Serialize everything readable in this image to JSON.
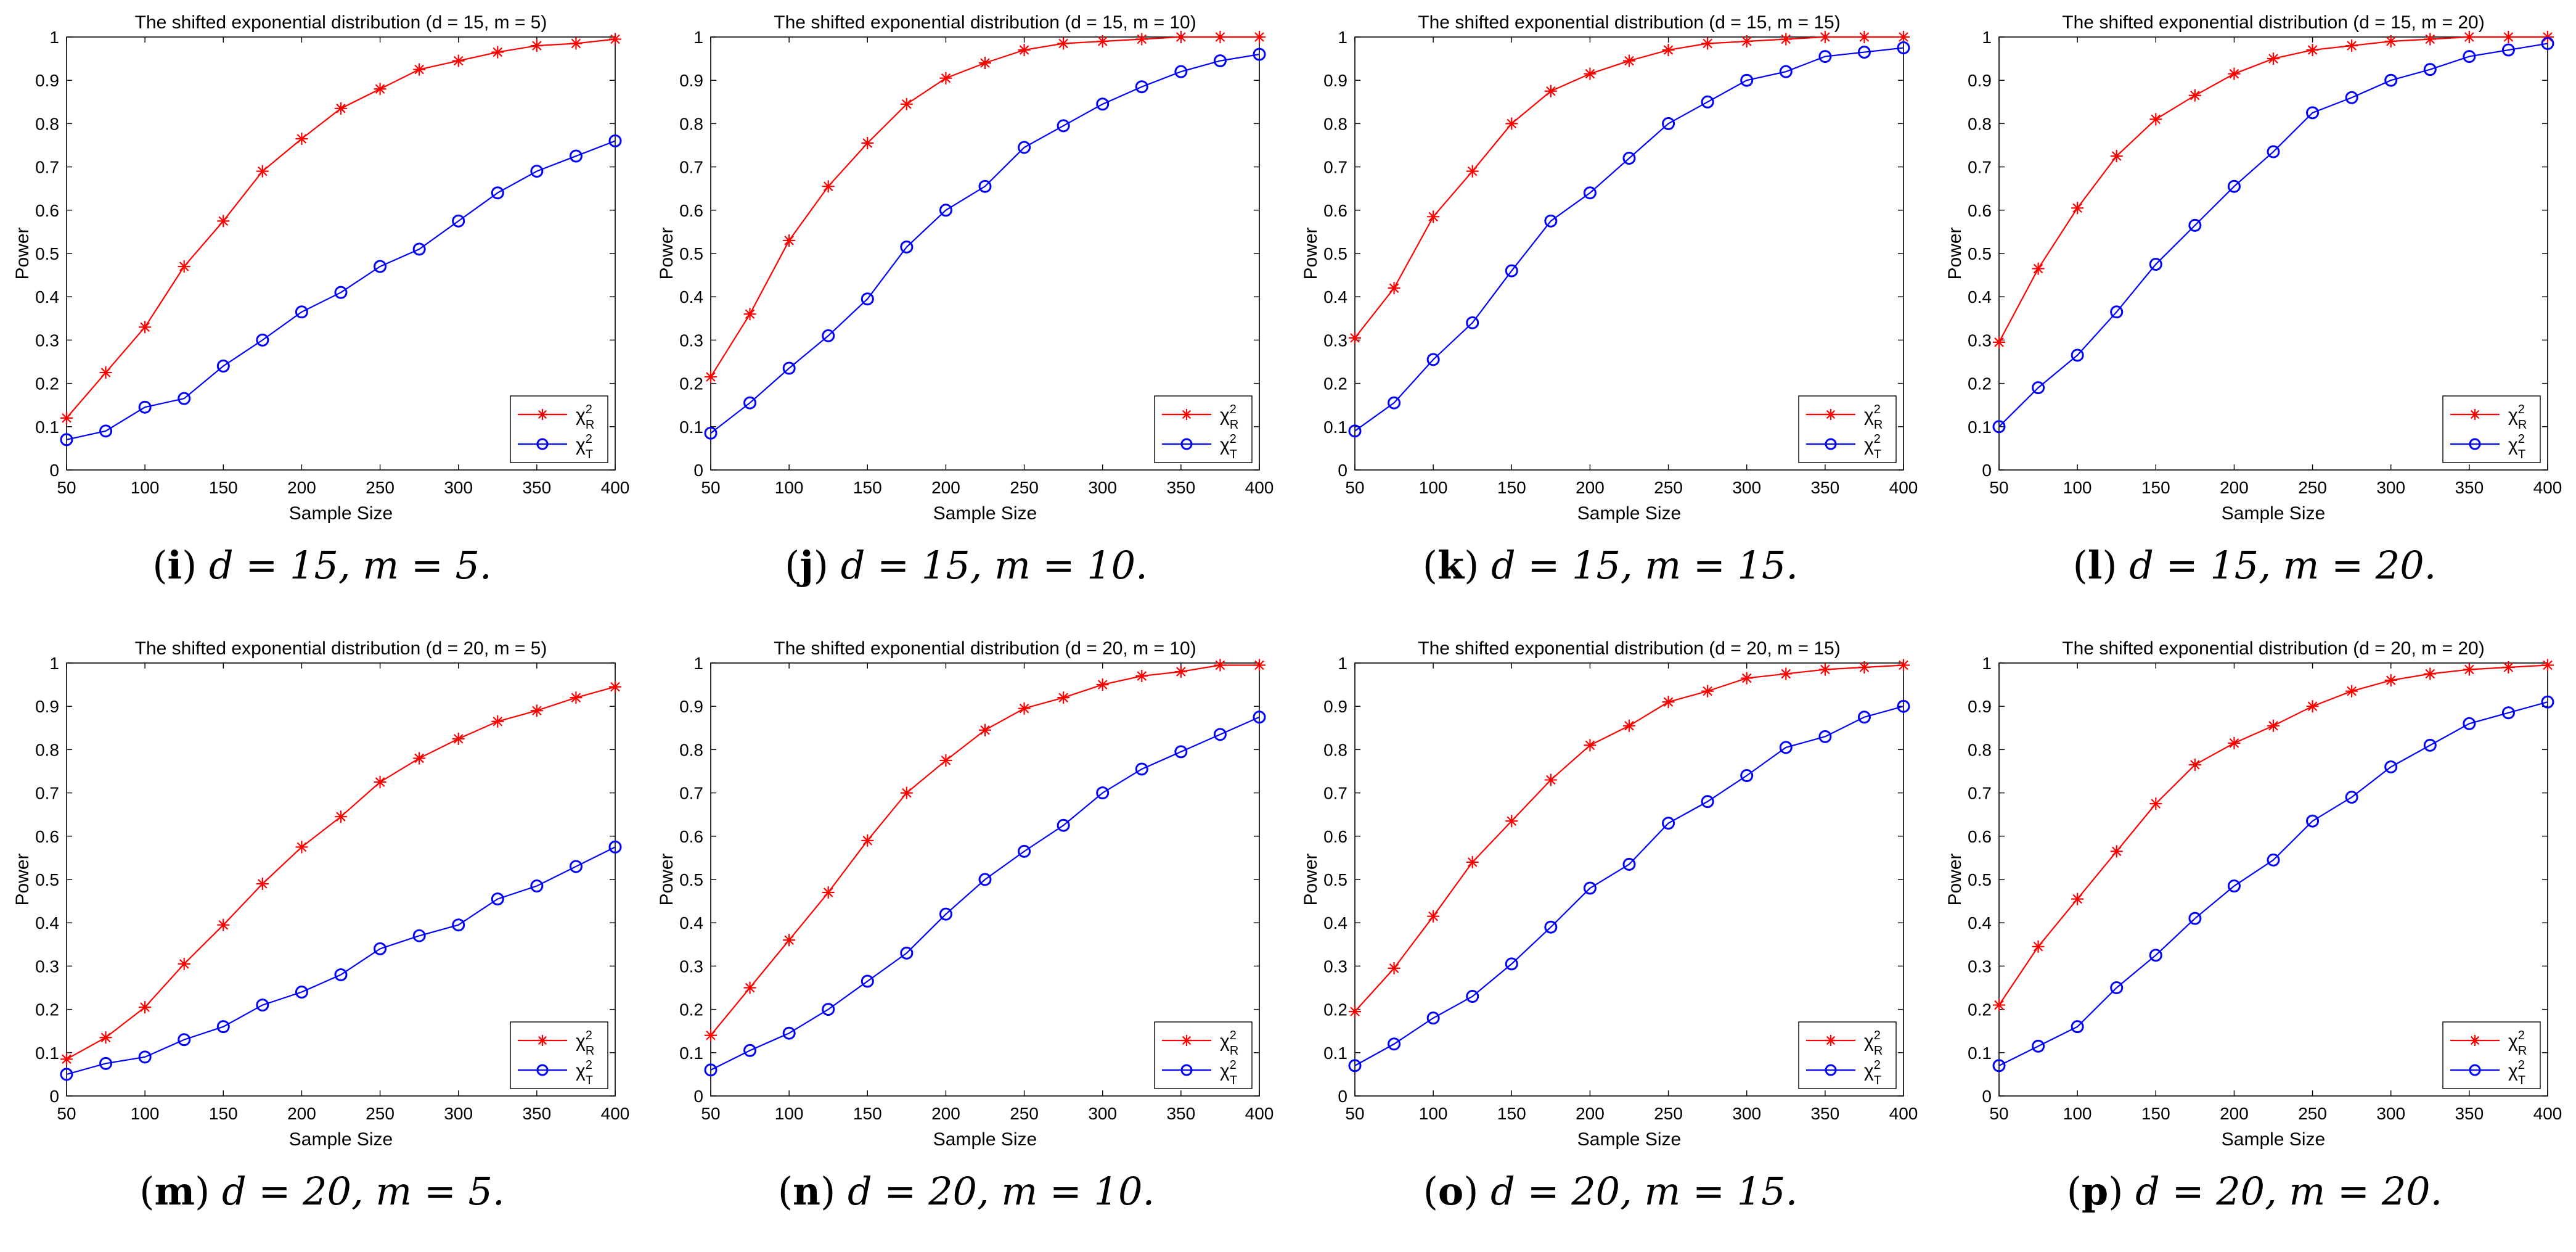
{
  "figure": {
    "x_label": "Sample Size",
    "y_label": "Power",
    "legend": {
      "r_label": "χ²R",
      "r_symbol": "χ",
      "r_sub": "R",
      "t_label": "χ²T",
      "t_symbol": "χ",
      "t_sub": "T",
      "placement": "bottom-right"
    },
    "colors": {
      "r": "#ff0000",
      "t": "#0000ff",
      "axis": "#000000"
    }
  },
  "chart_data": [
    {
      "type": "line",
      "title": "The shifted exponential distribution (d = 15, m = 5)",
      "caption": {
        "letter": "i",
        "text": "d = 15, m = 5."
      },
      "xlabel": "Sample Size",
      "ylabel": "Power",
      "xlim": [
        50,
        400
      ],
      "ylim": [
        0,
        1
      ],
      "x": [
        50,
        75,
        100,
        125,
        150,
        175,
        200,
        225,
        250,
        275,
        300,
        325,
        350,
        375,
        400
      ],
      "series": [
        {
          "name": "χ²R",
          "marker": "asterisk",
          "color": "#ff0000",
          "values": [
            0.12,
            0.225,
            0.33,
            0.47,
            0.575,
            0.69,
            0.765,
            0.835,
            0.88,
            0.925,
            0.945,
            0.965,
            0.98,
            0.985,
            0.995
          ]
        },
        {
          "name": "χ²T",
          "marker": "circle",
          "color": "#0000ff",
          "values": [
            0.07,
            0.09,
            0.145,
            0.165,
            0.24,
            0.3,
            0.365,
            0.41,
            0.47,
            0.51,
            0.575,
            0.64,
            0.69,
            0.725,
            0.76
          ]
        }
      ]
    },
    {
      "type": "line",
      "title": "The shifted exponential distribution (d = 15, m = 10)",
      "caption": {
        "letter": "j",
        "text": "d = 15, m = 10."
      },
      "xlabel": "Sample Size",
      "ylabel": "Power",
      "xlim": [
        50,
        400
      ],
      "ylim": [
        0,
        1
      ],
      "x": [
        50,
        75,
        100,
        125,
        150,
        175,
        200,
        225,
        250,
        275,
        300,
        325,
        350,
        375,
        400
      ],
      "series": [
        {
          "name": "χ²R",
          "marker": "asterisk",
          "color": "#ff0000",
          "values": [
            0.215,
            0.36,
            0.53,
            0.655,
            0.755,
            0.845,
            0.905,
            0.94,
            0.97,
            0.985,
            0.99,
            0.995,
            1.0,
            1.0,
            1.0
          ]
        },
        {
          "name": "χ²T",
          "marker": "circle",
          "color": "#0000ff",
          "values": [
            0.085,
            0.155,
            0.235,
            0.31,
            0.395,
            0.515,
            0.6,
            0.655,
            0.745,
            0.795,
            0.845,
            0.885,
            0.92,
            0.945,
            0.96
          ]
        }
      ]
    },
    {
      "type": "line",
      "title": "The shifted exponential distribution (d = 15, m = 15)",
      "caption": {
        "letter": "k",
        "text": "d = 15, m = 15."
      },
      "xlabel": "Sample Size",
      "ylabel": "Power",
      "xlim": [
        50,
        400
      ],
      "ylim": [
        0,
        1
      ],
      "x": [
        50,
        75,
        100,
        125,
        150,
        175,
        200,
        225,
        250,
        275,
        300,
        325,
        350,
        375,
        400
      ],
      "series": [
        {
          "name": "χ²R",
          "marker": "asterisk",
          "color": "#ff0000",
          "values": [
            0.305,
            0.42,
            0.585,
            0.69,
            0.8,
            0.875,
            0.915,
            0.945,
            0.97,
            0.985,
            0.99,
            0.995,
            1.0,
            1.0,
            1.0
          ]
        },
        {
          "name": "χ²T",
          "marker": "circle",
          "color": "#0000ff",
          "values": [
            0.09,
            0.155,
            0.255,
            0.34,
            0.46,
            0.575,
            0.64,
            0.72,
            0.8,
            0.85,
            0.9,
            0.92,
            0.955,
            0.965,
            0.975
          ]
        }
      ]
    },
    {
      "type": "line",
      "title": "The shifted exponential distribution (d = 15, m = 20)",
      "caption": {
        "letter": "l",
        "text": "d = 15, m = 20."
      },
      "xlabel": "Sample Size",
      "ylabel": "Power",
      "xlim": [
        50,
        400
      ],
      "ylim": [
        0,
        1
      ],
      "x": [
        50,
        75,
        100,
        125,
        150,
        175,
        200,
        225,
        250,
        275,
        300,
        325,
        350,
        375,
        400
      ],
      "series": [
        {
          "name": "χ²R",
          "marker": "asterisk",
          "color": "#ff0000",
          "values": [
            0.295,
            0.465,
            0.605,
            0.725,
            0.81,
            0.865,
            0.915,
            0.95,
            0.97,
            0.98,
            0.99,
            0.995,
            1.0,
            1.0,
            1.0
          ]
        },
        {
          "name": "χ²T",
          "marker": "circle",
          "color": "#0000ff",
          "values": [
            0.1,
            0.19,
            0.265,
            0.365,
            0.475,
            0.565,
            0.655,
            0.735,
            0.825,
            0.86,
            0.9,
            0.925,
            0.955,
            0.97,
            0.985
          ]
        }
      ]
    },
    {
      "type": "line",
      "title": "The shifted exponential distribution (d = 20, m = 5)",
      "caption": {
        "letter": "m",
        "text": "d = 20, m = 5."
      },
      "xlabel": "Sample Size",
      "ylabel": "Power",
      "xlim": [
        50,
        400
      ],
      "ylim": [
        0,
        1
      ],
      "x": [
        50,
        75,
        100,
        125,
        150,
        175,
        200,
        225,
        250,
        275,
        300,
        325,
        350,
        375,
        400
      ],
      "series": [
        {
          "name": "χ²R",
          "marker": "asterisk",
          "color": "#ff0000",
          "values": [
            0.085,
            0.135,
            0.205,
            0.305,
            0.395,
            0.49,
            0.575,
            0.645,
            0.725,
            0.78,
            0.825,
            0.865,
            0.89,
            0.92,
            0.945
          ]
        },
        {
          "name": "χ²T",
          "marker": "circle",
          "color": "#0000ff",
          "values": [
            0.05,
            0.075,
            0.09,
            0.13,
            0.16,
            0.21,
            0.24,
            0.28,
            0.34,
            0.37,
            0.395,
            0.455,
            0.485,
            0.53,
            0.575
          ]
        }
      ]
    },
    {
      "type": "line",
      "title": "The shifted exponential distribution (d = 20, m = 10)",
      "caption": {
        "letter": "n",
        "text": "d = 20, m = 10."
      },
      "xlabel": "Sample Size",
      "ylabel": "Power",
      "xlim": [
        50,
        400
      ],
      "ylim": [
        0,
        1
      ],
      "x": [
        50,
        75,
        100,
        125,
        150,
        175,
        200,
        225,
        250,
        275,
        300,
        325,
        350,
        375,
        400
      ],
      "series": [
        {
          "name": "χ²R",
          "marker": "asterisk",
          "color": "#ff0000",
          "values": [
            0.14,
            0.25,
            0.36,
            0.47,
            0.59,
            0.7,
            0.775,
            0.845,
            0.895,
            0.92,
            0.95,
            0.97,
            0.98,
            0.995,
            0.995
          ]
        },
        {
          "name": "χ²T",
          "marker": "circle",
          "color": "#0000ff",
          "values": [
            0.06,
            0.105,
            0.145,
            0.2,
            0.265,
            0.33,
            0.42,
            0.5,
            0.565,
            0.625,
            0.7,
            0.755,
            0.795,
            0.835,
            0.875
          ]
        }
      ]
    },
    {
      "type": "line",
      "title": "The shifted exponential distribution (d = 20, m = 15)",
      "caption": {
        "letter": "o",
        "text": "d = 20, m = 15."
      },
      "xlabel": "Sample Size",
      "ylabel": "Power",
      "xlim": [
        50,
        400
      ],
      "ylim": [
        0,
        1
      ],
      "x": [
        50,
        75,
        100,
        125,
        150,
        175,
        200,
        225,
        250,
        275,
        300,
        325,
        350,
        375,
        400
      ],
      "series": [
        {
          "name": "χ²R",
          "marker": "asterisk",
          "color": "#ff0000",
          "values": [
            0.195,
            0.295,
            0.415,
            0.54,
            0.635,
            0.73,
            0.81,
            0.855,
            0.91,
            0.935,
            0.965,
            0.975,
            0.985,
            0.99,
            0.995
          ]
        },
        {
          "name": "χ²T",
          "marker": "circle",
          "color": "#0000ff",
          "values": [
            0.07,
            0.12,
            0.18,
            0.23,
            0.305,
            0.39,
            0.48,
            0.535,
            0.63,
            0.68,
            0.74,
            0.805,
            0.83,
            0.875,
            0.9
          ]
        }
      ]
    },
    {
      "type": "line",
      "title": "The shifted exponential distribution (d = 20, m = 20)",
      "caption": {
        "letter": "p",
        "text": "d = 20, m = 20."
      },
      "xlabel": "Sample Size",
      "ylabel": "Power",
      "xlim": [
        50,
        400
      ],
      "ylim": [
        0,
        1
      ],
      "x": [
        50,
        75,
        100,
        125,
        150,
        175,
        200,
        225,
        250,
        275,
        300,
        325,
        350,
        375,
        400
      ],
      "series": [
        {
          "name": "χ²R",
          "marker": "asterisk",
          "color": "#ff0000",
          "values": [
            0.21,
            0.345,
            0.455,
            0.565,
            0.675,
            0.765,
            0.815,
            0.855,
            0.9,
            0.935,
            0.96,
            0.975,
            0.985,
            0.99,
            0.995
          ]
        },
        {
          "name": "χ²T",
          "marker": "circle",
          "color": "#0000ff",
          "values": [
            0.07,
            0.115,
            0.16,
            0.25,
            0.325,
            0.41,
            0.485,
            0.545,
            0.635,
            0.69,
            0.76,
            0.81,
            0.86,
            0.885,
            0.91
          ]
        }
      ]
    }
  ]
}
